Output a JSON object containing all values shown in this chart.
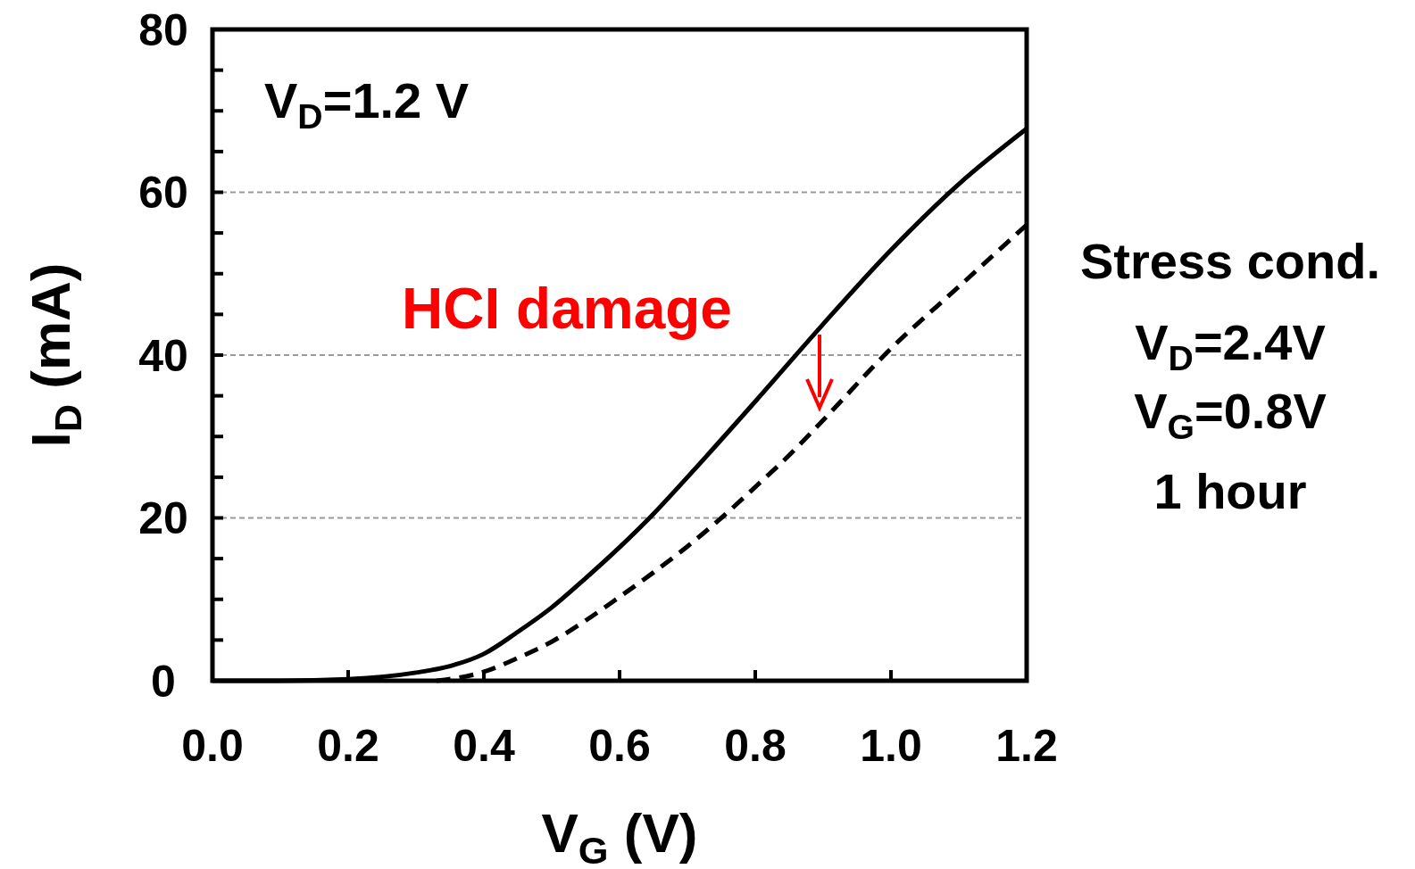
{
  "chart_data": {
    "type": "line",
    "xlabel": "V$_{G}$ (V)",
    "ylabel": "I$_{D}$ (mA)",
    "x": [
      0,
      0.1,
      0.2,
      0.3,
      0.35,
      0.4,
      0.45,
      0.5,
      0.55,
      0.6,
      0.65,
      0.7,
      0.8,
      0.9,
      1.0,
      1.1,
      1.2
    ],
    "series": [
      {
        "color": "#000000",
        "line_style": "solid",
        "values": [
          0,
          0,
          0.2,
          1,
          1.8,
          3.3,
          6,
          9,
          12.6,
          16.4,
          20.5,
          25,
          34.3,
          43.8,
          52.9,
          61,
          67.8
        ]
      },
      {
        "color": "#000000",
        "line_style": "dashed",
        "x": [
          0.33,
          0.4,
          0.45,
          0.5,
          0.55,
          0.6,
          0.65,
          0.7,
          0.75,
          0.8,
          0.85,
          0.9,
          1.0,
          1.1,
          1.2
        ],
        "values": [
          0,
          1.1,
          2.8,
          4.8,
          7.4,
          10.3,
          13.3,
          16.5,
          20,
          23.8,
          27.7,
          32,
          40.8,
          48.4,
          56
        ]
      }
    ],
    "xlim": [
      0,
      1.2
    ],
    "xticks": [
      {
        "value": 0,
        "label": "0.0"
      },
      0.2,
      0.4,
      0.6,
      0.8,
      {
        "value": 1,
        "label": "1.0"
      },
      1.2
    ],
    "ylim": [
      0,
      80
    ],
    "yticks": [
      0,
      {
        "value": 5,
        "label": null
      },
      {
        "value": 10,
        "label": null
      },
      {
        "value": 15,
        "label": null
      },
      20,
      {
        "value": 25,
        "label": null
      },
      {
        "value": 30,
        "label": null
      },
      {
        "value": 35,
        "label": null
      },
      40,
      {
        "value": 45,
        "label": null
      },
      {
        "value": 50,
        "label": null
      },
      {
        "value": 55,
        "label": null
      },
      60,
      {
        "value": 65,
        "label": null
      },
      {
        "value": 70,
        "label": null
      },
      {
        "value": 75,
        "label": null
      },
      80
    ],
    "grid": "y",
    "marker": "none",
    "annotations": [
      "V$_{D}$=1.2 V",
      "HCI damage",
      "Stress cond.",
      "V$_{D}$=2.4V",
      "V$_{G}$=0.8V",
      "1 hour"
    ]
  }
}
